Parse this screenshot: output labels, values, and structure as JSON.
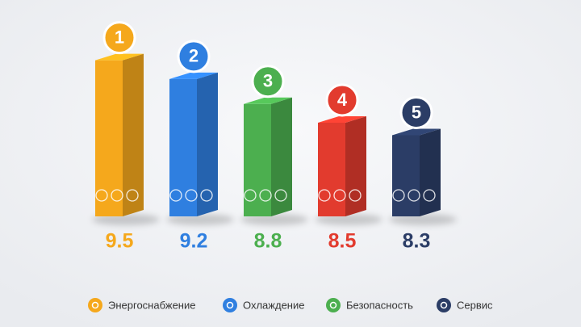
{
  "chart_data": {
    "type": "bar3d",
    "categories": [
      "1",
      "2",
      "3",
      "4",
      "5"
    ],
    "values": [
      9.5,
      9.2,
      8.8,
      8.5,
      8.3
    ],
    "colors": [
      "#f5a81c",
      "#2f7fe0",
      "#4caf4f",
      "#e23b2e",
      "#2b3d66"
    ],
    "ylim": [
      7,
      10
    ],
    "legend": [
      {
        "name": "Энергоснабжение",
        "color": "#f5a81c"
      },
      {
        "name": "Охлаждение",
        "color": "#2f7fe0"
      },
      {
        "name": "Безопасность",
        "color": "#4caf4f"
      },
      {
        "name": "Сервис",
        "color": "#2b3d66"
      }
    ]
  }
}
